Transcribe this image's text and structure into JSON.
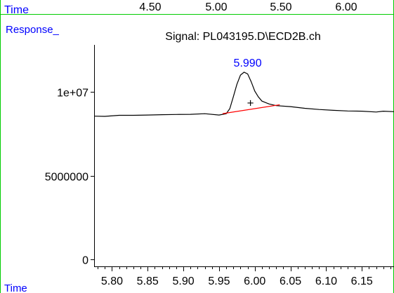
{
  "chart_data": {
    "type": "line",
    "signal_title": "Signal: PL043195.D\\ECD2B.ch",
    "ylabel": "Response_",
    "xlabel": "Time",
    "top_axis": {
      "label": "Time",
      "ticks": [
        "4.50",
        "5.00",
        "5.50",
        "6.00"
      ]
    },
    "xlim": [
      5.775,
      6.195
    ],
    "ylim": [
      -400000,
      12800000
    ],
    "x_ticks": [
      5.8,
      5.85,
      5.9,
      5.95,
      6.0,
      6.05,
      6.1,
      6.15
    ],
    "x_tick_labels": [
      "5.80",
      "5.85",
      "5.90",
      "5.95",
      "6.00",
      "6.05",
      "6.10",
      "6.15"
    ],
    "x_minor_step": 0.01,
    "y_ticks": [
      0,
      5000000,
      10000000
    ],
    "y_tick_labels": [
      "0",
      "5000000",
      "1e+07"
    ],
    "series": [
      {
        "x": [
          5.775,
          5.79,
          5.81,
          5.83,
          5.85,
          5.87,
          5.89,
          5.91,
          5.93,
          5.95,
          5.96,
          5.965,
          5.97,
          5.975,
          5.98,
          5.985,
          5.99,
          5.995,
          6.0,
          6.005,
          6.01,
          6.02,
          6.03,
          6.05,
          6.07,
          6.09,
          6.11,
          6.13,
          6.15,
          6.17,
          6.18,
          6.195
        ],
        "y": [
          8550000,
          8540000,
          8600000,
          8600000,
          8620000,
          8640000,
          8650000,
          8660000,
          8700000,
          8620000,
          8700000,
          9000000,
          9700000,
          10450000,
          11000000,
          11170000,
          11070000,
          10600000,
          10050000,
          9700000,
          9450000,
          9280000,
          9180000,
          9120000,
          9020000,
          8950000,
          8900000,
          8860000,
          8850000,
          8800000,
          8850000,
          8820000
        ]
      }
    ],
    "baseline": {
      "x": [
        5.955,
        6.035
      ],
      "y": [
        8700000,
        9230000
      ]
    },
    "peak_label": "5.990",
    "peak": {
      "x": 5.99,
      "y": 11170000
    },
    "centroid_marker": {
      "label": "+",
      "x": 5.994,
      "y": 9350000
    }
  }
}
